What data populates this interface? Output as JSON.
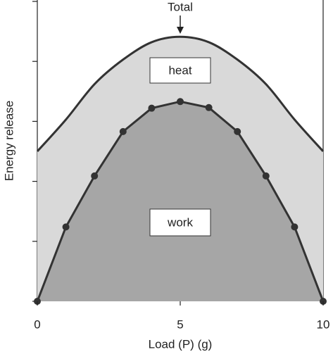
{
  "chart_data": {
    "type": "area",
    "x_label": "Load (P)  (g)",
    "y_label": "Energy release",
    "x": [
      0,
      1,
      2,
      3,
      4,
      5,
      6,
      7,
      8,
      9,
      10
    ],
    "series": [
      {
        "color": "#d9d9d9",
        "values": [
          2.5,
          3.03,
          3.62,
          4.03,
          4.32,
          4.41,
          4.32,
          4.03,
          3.62,
          3.03,
          2.5
        ]
      },
      {
        "color": "#a6a6a6",
        "values": [
          0,
          1.24,
          2.09,
          2.83,
          3.22,
          3.33,
          3.23,
          2.83,
          2.09,
          1.24,
          0
        ]
      }
    ],
    "annotations": {
      "total": "Total",
      "heat": "heat",
      "work": "work"
    },
    "xlim": [
      0,
      10
    ],
    "xticks": [
      0,
      5,
      10
    ],
    "ylim": [
      0,
      5
    ],
    "yticks": [
      0,
      1,
      2,
      3,
      4,
      5
    ]
  }
}
